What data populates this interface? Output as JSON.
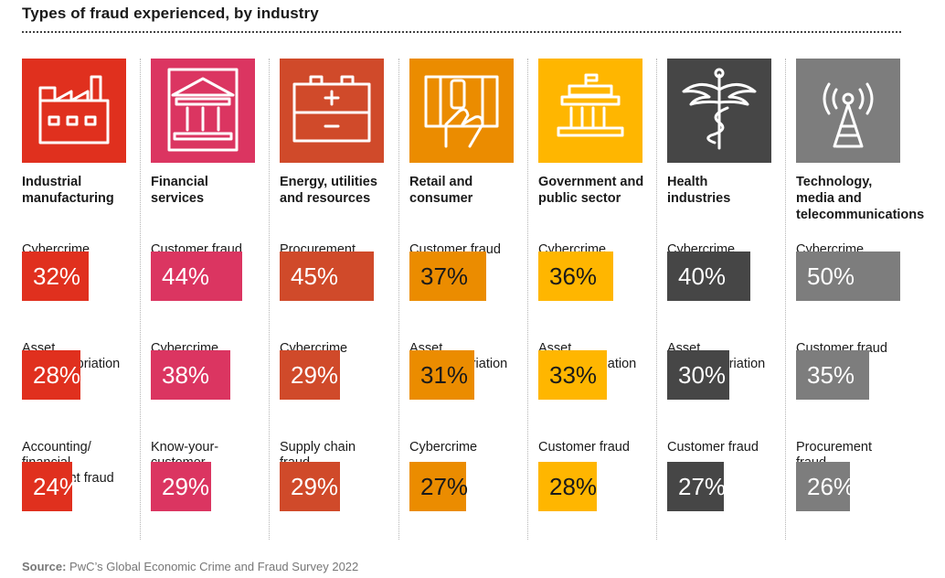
{
  "title": "Types of fraud experienced, by industry",
  "source_label": "Source:",
  "source_text": "PwC’s Global Economic Crime and Fraud Survey 2022",
  "chart_data": {
    "type": "bar",
    "title": "Types of fraud experienced, by industry",
    "industries": [
      {
        "name": "Industrial\nmanufacturing",
        "icon": "factory-icon",
        "color": "#e0301e",
        "text_color": "#ffffff",
        "frauds": [
          {
            "label": "Cybercrime",
            "value": 32,
            "display": "32%"
          },
          {
            "label": "Asset\nmisappropriation",
            "value": 28,
            "display": "28%"
          },
          {
            "label": "Accounting/\nfinancial\nstatement fraud",
            "value": 24,
            "display": "24%"
          }
        ]
      },
      {
        "name": "Financial\nservices",
        "icon": "bank-icon",
        "color": "#db3561",
        "text_color": "#ffffff",
        "frauds": [
          {
            "label": "Customer fraud",
            "value": 44,
            "display": "44%"
          },
          {
            "label": "Cybercrime",
            "value": 38,
            "display": "38%"
          },
          {
            "label": "Know-your-\ncustomer\nfailure",
            "value": 29,
            "display": "29%"
          }
        ]
      },
      {
        "name": "Energy, utilities\nand resources",
        "icon": "battery-icon",
        "color": "#d04a2a",
        "text_color": "#ffffff",
        "frauds": [
          {
            "label": "Procurement\nfraud",
            "value": 45,
            "display": "45%"
          },
          {
            "label": "Cybercrime",
            "value": 29,
            "display": "29%"
          },
          {
            "label": "Supply chain\nfraud",
            "value": 29,
            "display": "29%"
          }
        ]
      },
      {
        "name": "Retail and\nconsumer",
        "icon": "credit-card-hand-icon",
        "color": "#eb8c00",
        "text_color": "#1a1a1a",
        "frauds": [
          {
            "label": "Customer fraud",
            "value": 37,
            "display": "37%"
          },
          {
            "label": "Asset\nmisappropriation",
            "value": 31,
            "display": "31%"
          },
          {
            "label": "Cybercrime",
            "value": 27,
            "display": "27%"
          }
        ]
      },
      {
        "name": "Government and\npublic sector",
        "icon": "government-building-icon",
        "color": "#ffb600",
        "text_color": "#1a1a1a",
        "frauds": [
          {
            "label": "Cybercrime",
            "value": 36,
            "display": "36%"
          },
          {
            "label": "Asset\nmisappropriation",
            "value": 33,
            "display": "33%"
          },
          {
            "label": "Customer fraud",
            "value": 28,
            "display": "28%"
          }
        ]
      },
      {
        "name": "Health\nindustries",
        "icon": "caduceus-icon",
        "color": "#464646",
        "text_color": "#ffffff",
        "frauds": [
          {
            "label": "Cybercrime",
            "value": 40,
            "display": "40%"
          },
          {
            "label": "Asset\nmisappropriation",
            "value": 30,
            "display": "30%"
          },
          {
            "label": "Customer fraud",
            "value": 27,
            "display": "27%"
          }
        ]
      },
      {
        "name": "Technology,\nmedia and\ntelecommunications",
        "icon": "antenna-tower-icon",
        "color": "#7d7d7d",
        "text_color": "#ffffff",
        "frauds": [
          {
            "label": "Cybercrime",
            "value": 50,
            "display": "50%"
          },
          {
            "label": "Customer fraud",
            "value": 35,
            "display": "35%"
          },
          {
            "label": "Procurement\nfraud",
            "value": 26,
            "display": "26%"
          }
        ]
      }
    ],
    "value_max": 50
  }
}
